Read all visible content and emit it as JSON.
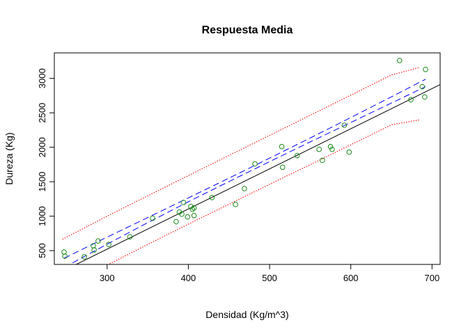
{
  "chart_data": {
    "type": "scatter",
    "title": "Respuesta Media",
    "xlabel": "Densidad (Kg/m^3)",
    "ylabel": "Dureza (Kg)",
    "xlim": [
      235,
      710
    ],
    "ylim": [
      300,
      3370
    ],
    "x_ticks": [
      300,
      400,
      500,
      600,
      700
    ],
    "y_ticks": [
      500,
      1000,
      1500,
      2000,
      2500,
      3000
    ],
    "grid": false,
    "legend": "none",
    "colors": {
      "points": "#1a8a1a",
      "fit": "#000000",
      "confidence": "#0000ff",
      "prediction": "#ff0000"
    },
    "points": {
      "x": [
        247,
        248,
        272,
        283,
        284,
        289,
        302,
        328,
        356,
        385,
        389,
        392,
        394,
        399,
        403,
        405,
        407,
        407,
        429,
        458,
        469,
        482,
        515,
        516,
        534,
        561,
        565,
        575,
        577,
        592,
        598,
        660,
        674,
        688,
        691,
        692
      ],
      "y": [
        480,
        420,
        410,
        570,
        510,
        640,
        590,
        700,
        970,
        920,
        1060,
        1030,
        1200,
        990,
        1140,
        1100,
        1010,
        1120,
        1270,
        1170,
        1400,
        1760,
        2010,
        1710,
        1880,
        1970,
        1810,
        2010,
        1970,
        2320,
        1930,
        3260,
        2690,
        2880,
        2730,
        3130
      ]
    },
    "fit_line": {
      "x": [
        235,
        710
      ],
      "y": [
        143,
        2910
      ]
    },
    "confidence_band": {
      "x": [
        247,
        300,
        350,
        400,
        450,
        500,
        550,
        600,
        650,
        692
      ],
      "upper": [
        390,
        696,
        980,
        1265,
        1552,
        1842,
        2135,
        2432,
        2732,
        2987
      ],
      "lower": [
        256,
        594,
        906,
        1209,
        1503,
        1792,
        2077,
        2360,
        2642,
        2879
      ]
    },
    "prediction_band": {
      "x": [
        245,
        300,
        350,
        400,
        450,
        500,
        550,
        600,
        650,
        685
      ],
      "upper": [
        665,
        1000,
        1296,
        1589,
        1881,
        2172,
        2464,
        2756,
        3050,
        3160
      ],
      "lower": [
        -60,
        290,
        590,
        885,
        1174,
        1462,
        1748,
        2036,
        2325,
        2400
      ]
    }
  }
}
